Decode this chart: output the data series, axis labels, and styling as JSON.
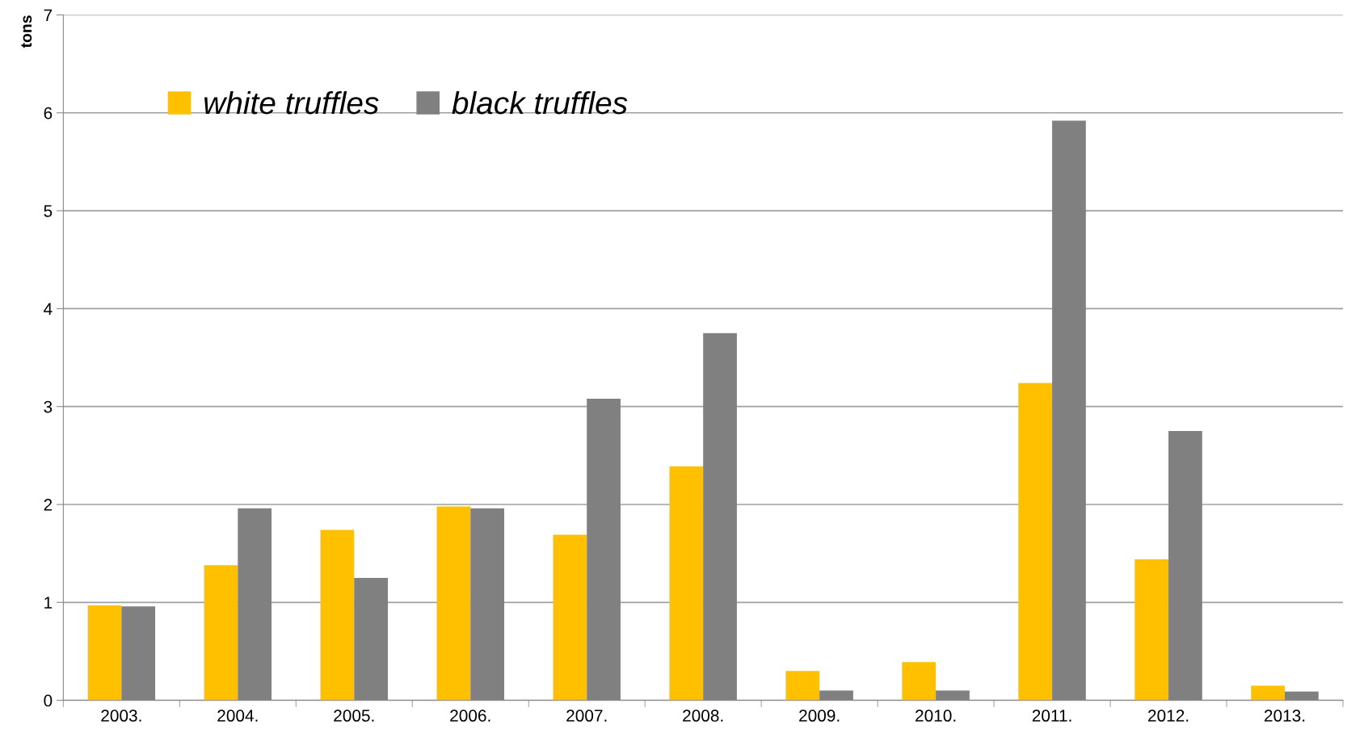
{
  "chart_data": {
    "type": "bar",
    "ylabel": "tons",
    "categories": [
      "2003.",
      "2004.",
      "2005.",
      "2006.",
      "2007.",
      "2008.",
      "2009.",
      "2010.",
      "2011.",
      "2012.",
      "2013."
    ],
    "series": [
      {
        "name": "white truffles",
        "color": "#ffc000",
        "values": [
          0.97,
          1.38,
          1.74,
          1.98,
          1.69,
          2.39,
          0.3,
          0.39,
          3.24,
          1.44,
          0.15
        ]
      },
      {
        "name": "black truffles",
        "color": "#808080",
        "values": [
          0.96,
          1.96,
          1.25,
          1.96,
          3.08,
          3.75,
          0.1,
          0.1,
          5.92,
          2.75,
          0.09
        ]
      }
    ],
    "ylim": [
      0,
      7
    ],
    "yticks": [
      0,
      1,
      2,
      3,
      4,
      5,
      6,
      7
    ],
    "grid": "y",
    "legend": "top left"
  }
}
